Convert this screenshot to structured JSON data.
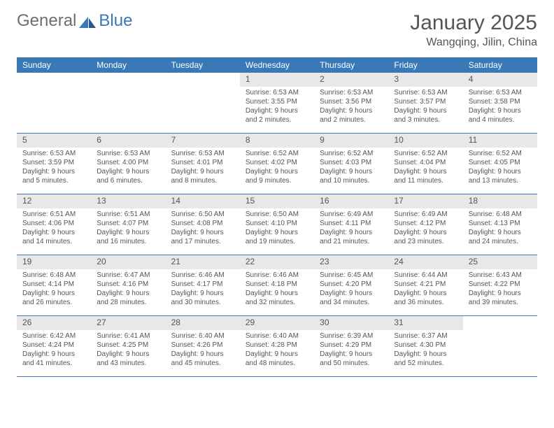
{
  "logo": {
    "text1": "General",
    "text2": "Blue"
  },
  "title": "January 2025",
  "location": "Wangqing, Jilin, China",
  "colors": {
    "header_bg": "#3a79b7",
    "header_text": "#ffffff",
    "daynum_bg": "#e8e8e8",
    "text": "#555555",
    "border": "#3a79b7",
    "background": "#ffffff"
  },
  "typography": {
    "title_fontsize": 30,
    "location_fontsize": 16,
    "header_fontsize": 12,
    "daynum_fontsize": 12,
    "body_fontsize": 10
  },
  "layout": {
    "columns": 7,
    "rows": 5
  },
  "day_names": [
    "Sunday",
    "Monday",
    "Tuesday",
    "Wednesday",
    "Thursday",
    "Friday",
    "Saturday"
  ],
  "weeks": [
    [
      null,
      null,
      null,
      {
        "n": "1",
        "sr": "Sunrise: 6:53 AM",
        "ss": "Sunset: 3:55 PM",
        "d1": "Daylight: 9 hours",
        "d2": "and 2 minutes."
      },
      {
        "n": "2",
        "sr": "Sunrise: 6:53 AM",
        "ss": "Sunset: 3:56 PM",
        "d1": "Daylight: 9 hours",
        "d2": "and 2 minutes."
      },
      {
        "n": "3",
        "sr": "Sunrise: 6:53 AM",
        "ss": "Sunset: 3:57 PM",
        "d1": "Daylight: 9 hours",
        "d2": "and 3 minutes."
      },
      {
        "n": "4",
        "sr": "Sunrise: 6:53 AM",
        "ss": "Sunset: 3:58 PM",
        "d1": "Daylight: 9 hours",
        "d2": "and 4 minutes."
      }
    ],
    [
      {
        "n": "5",
        "sr": "Sunrise: 6:53 AM",
        "ss": "Sunset: 3:59 PM",
        "d1": "Daylight: 9 hours",
        "d2": "and 5 minutes."
      },
      {
        "n": "6",
        "sr": "Sunrise: 6:53 AM",
        "ss": "Sunset: 4:00 PM",
        "d1": "Daylight: 9 hours",
        "d2": "and 6 minutes."
      },
      {
        "n": "7",
        "sr": "Sunrise: 6:53 AM",
        "ss": "Sunset: 4:01 PM",
        "d1": "Daylight: 9 hours",
        "d2": "and 8 minutes."
      },
      {
        "n": "8",
        "sr": "Sunrise: 6:52 AM",
        "ss": "Sunset: 4:02 PM",
        "d1": "Daylight: 9 hours",
        "d2": "and 9 minutes."
      },
      {
        "n": "9",
        "sr": "Sunrise: 6:52 AM",
        "ss": "Sunset: 4:03 PM",
        "d1": "Daylight: 9 hours",
        "d2": "and 10 minutes."
      },
      {
        "n": "10",
        "sr": "Sunrise: 6:52 AM",
        "ss": "Sunset: 4:04 PM",
        "d1": "Daylight: 9 hours",
        "d2": "and 11 minutes."
      },
      {
        "n": "11",
        "sr": "Sunrise: 6:52 AM",
        "ss": "Sunset: 4:05 PM",
        "d1": "Daylight: 9 hours",
        "d2": "and 13 minutes."
      }
    ],
    [
      {
        "n": "12",
        "sr": "Sunrise: 6:51 AM",
        "ss": "Sunset: 4:06 PM",
        "d1": "Daylight: 9 hours",
        "d2": "and 14 minutes."
      },
      {
        "n": "13",
        "sr": "Sunrise: 6:51 AM",
        "ss": "Sunset: 4:07 PM",
        "d1": "Daylight: 9 hours",
        "d2": "and 16 minutes."
      },
      {
        "n": "14",
        "sr": "Sunrise: 6:50 AM",
        "ss": "Sunset: 4:08 PM",
        "d1": "Daylight: 9 hours",
        "d2": "and 17 minutes."
      },
      {
        "n": "15",
        "sr": "Sunrise: 6:50 AM",
        "ss": "Sunset: 4:10 PM",
        "d1": "Daylight: 9 hours",
        "d2": "and 19 minutes."
      },
      {
        "n": "16",
        "sr": "Sunrise: 6:49 AM",
        "ss": "Sunset: 4:11 PM",
        "d1": "Daylight: 9 hours",
        "d2": "and 21 minutes."
      },
      {
        "n": "17",
        "sr": "Sunrise: 6:49 AM",
        "ss": "Sunset: 4:12 PM",
        "d1": "Daylight: 9 hours",
        "d2": "and 23 minutes."
      },
      {
        "n": "18",
        "sr": "Sunrise: 6:48 AM",
        "ss": "Sunset: 4:13 PM",
        "d1": "Daylight: 9 hours",
        "d2": "and 24 minutes."
      }
    ],
    [
      {
        "n": "19",
        "sr": "Sunrise: 6:48 AM",
        "ss": "Sunset: 4:14 PM",
        "d1": "Daylight: 9 hours",
        "d2": "and 26 minutes."
      },
      {
        "n": "20",
        "sr": "Sunrise: 6:47 AM",
        "ss": "Sunset: 4:16 PM",
        "d1": "Daylight: 9 hours",
        "d2": "and 28 minutes."
      },
      {
        "n": "21",
        "sr": "Sunrise: 6:46 AM",
        "ss": "Sunset: 4:17 PM",
        "d1": "Daylight: 9 hours",
        "d2": "and 30 minutes."
      },
      {
        "n": "22",
        "sr": "Sunrise: 6:46 AM",
        "ss": "Sunset: 4:18 PM",
        "d1": "Daylight: 9 hours",
        "d2": "and 32 minutes."
      },
      {
        "n": "23",
        "sr": "Sunrise: 6:45 AM",
        "ss": "Sunset: 4:20 PM",
        "d1": "Daylight: 9 hours",
        "d2": "and 34 minutes."
      },
      {
        "n": "24",
        "sr": "Sunrise: 6:44 AM",
        "ss": "Sunset: 4:21 PM",
        "d1": "Daylight: 9 hours",
        "d2": "and 36 minutes."
      },
      {
        "n": "25",
        "sr": "Sunrise: 6:43 AM",
        "ss": "Sunset: 4:22 PM",
        "d1": "Daylight: 9 hours",
        "d2": "and 39 minutes."
      }
    ],
    [
      {
        "n": "26",
        "sr": "Sunrise: 6:42 AM",
        "ss": "Sunset: 4:24 PM",
        "d1": "Daylight: 9 hours",
        "d2": "and 41 minutes."
      },
      {
        "n": "27",
        "sr": "Sunrise: 6:41 AM",
        "ss": "Sunset: 4:25 PM",
        "d1": "Daylight: 9 hours",
        "d2": "and 43 minutes."
      },
      {
        "n": "28",
        "sr": "Sunrise: 6:40 AM",
        "ss": "Sunset: 4:26 PM",
        "d1": "Daylight: 9 hours",
        "d2": "and 45 minutes."
      },
      {
        "n": "29",
        "sr": "Sunrise: 6:40 AM",
        "ss": "Sunset: 4:28 PM",
        "d1": "Daylight: 9 hours",
        "d2": "and 48 minutes."
      },
      {
        "n": "30",
        "sr": "Sunrise: 6:39 AM",
        "ss": "Sunset: 4:29 PM",
        "d1": "Daylight: 9 hours",
        "d2": "and 50 minutes."
      },
      {
        "n": "31",
        "sr": "Sunrise: 6:37 AM",
        "ss": "Sunset: 4:30 PM",
        "d1": "Daylight: 9 hours",
        "d2": "and 52 minutes."
      },
      null
    ]
  ]
}
